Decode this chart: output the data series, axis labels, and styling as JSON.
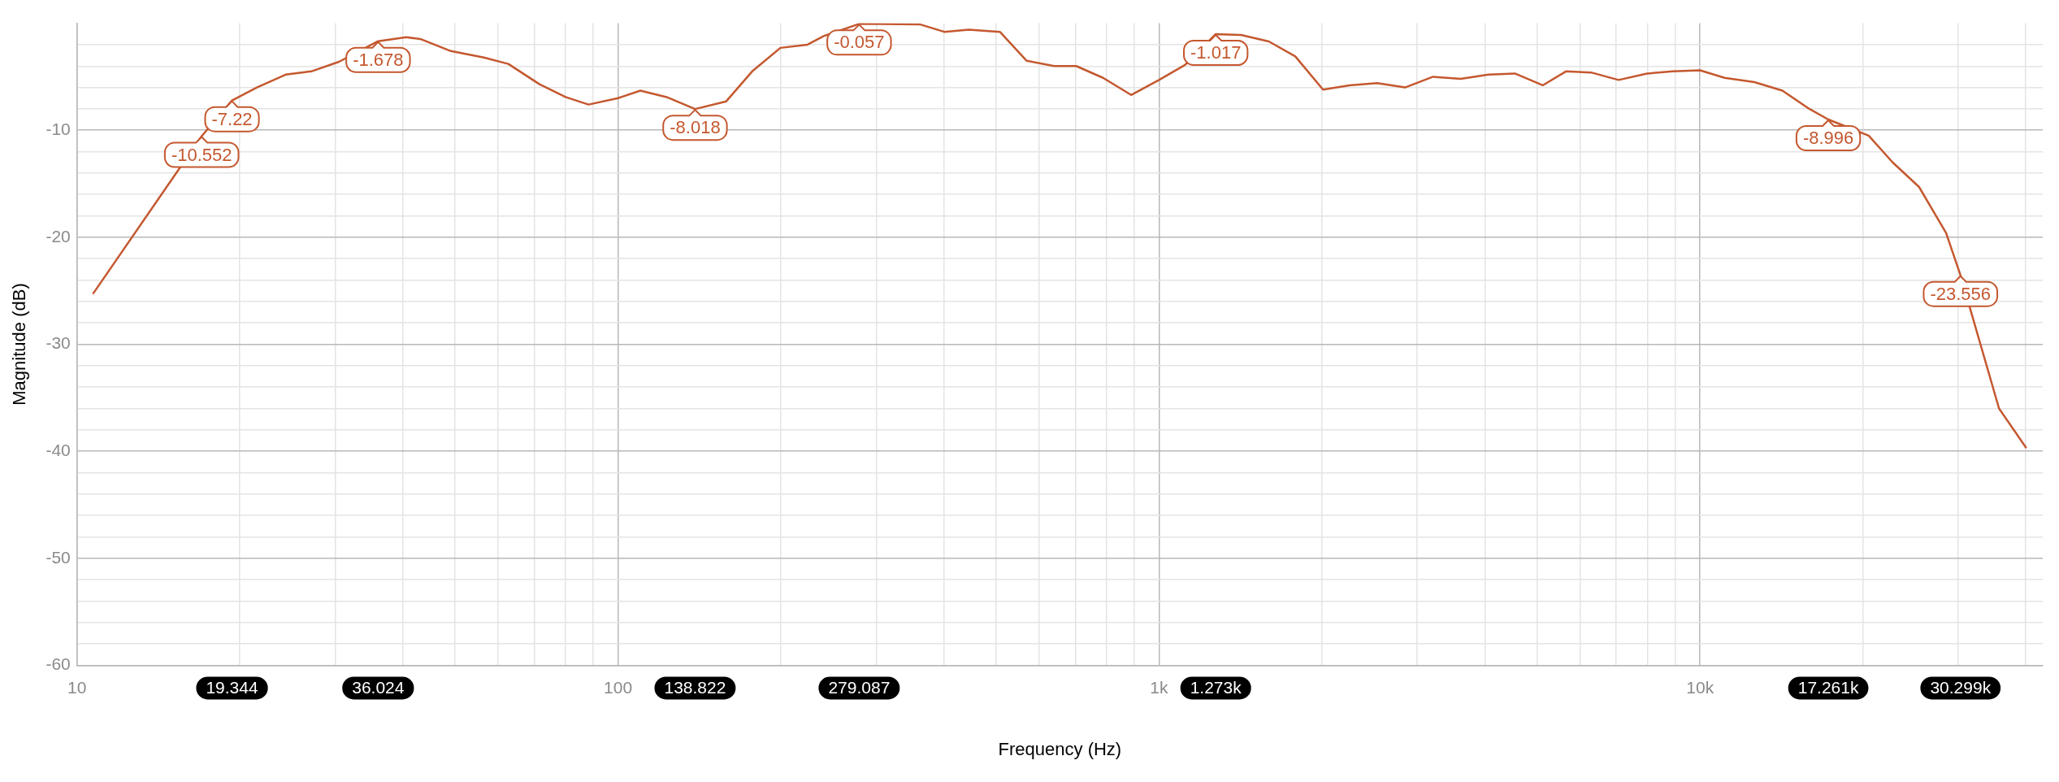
{
  "chart_data": {
    "type": "line",
    "xlabel": "Frequency (Hz)",
    "ylabel": "Magnitude (dB)",
    "log": "x",
    "grid": true,
    "legend": false,
    "marker": "none",
    "line_style": "solid",
    "xlim": [
      10,
      43000
    ],
    "ylim": [
      -60,
      0
    ],
    "xticks": [
      {
        "value": 10,
        "label": "10"
      },
      {
        "value": 19.344,
        "label": "19.344"
      },
      {
        "value": 36.024,
        "label": "36.024"
      },
      {
        "value": 138.822,
        "label": "138.822"
      },
      {
        "value": 279.087,
        "label": "279.087"
      },
      {
        "value": 1273,
        "label": "1.273k"
      },
      {
        "value": 17261,
        "label": "17.261k"
      },
      {
        "value": 30299,
        "label": "30.299k"
      },
      {
        "value": 20,
        "label": null
      },
      {
        "value": 30,
        "label": null
      },
      {
        "value": 40,
        "label": null
      },
      {
        "value": 50,
        "label": null
      },
      {
        "value": 60,
        "label": null
      },
      {
        "value": 70,
        "label": null
      },
      {
        "value": 80,
        "label": null
      },
      {
        "value": 90,
        "label": null
      },
      {
        "value": 100,
        "label": "100"
      },
      {
        "value": 200,
        "label": null
      },
      {
        "value": 300,
        "label": null
      },
      {
        "value": 400,
        "label": null
      },
      {
        "value": 500,
        "label": null
      },
      {
        "value": 600,
        "label": null
      },
      {
        "value": 700,
        "label": null
      },
      {
        "value": 800,
        "label": null
      },
      {
        "value": 900,
        "label": null
      },
      {
        "value": 1000,
        "label": "1k"
      },
      {
        "value": 2000,
        "label": null
      },
      {
        "value": 3000,
        "label": null
      },
      {
        "value": 4000,
        "label": null
      },
      {
        "value": 5000,
        "label": null
      },
      {
        "value": 6000,
        "label": null
      },
      {
        "value": 7000,
        "label": null
      },
      {
        "value": 8000,
        "label": null
      },
      {
        "value": 9000,
        "label": null
      },
      {
        "value": 10000,
        "label": "10k"
      },
      {
        "value": 20000,
        "label": null
      },
      {
        "value": 30000,
        "label": null
      },
      {
        "value": 40000,
        "label": null
      }
    ],
    "yticks": [
      -60,
      {
        "value": -58,
        "label": null
      },
      {
        "value": -56,
        "label": null
      },
      {
        "value": -54,
        "label": null
      },
      {
        "value": -52,
        "label": null
      },
      -50,
      {
        "value": -48,
        "label": null
      },
      {
        "value": -46,
        "label": null
      },
      {
        "value": -44,
        "label": null
      },
      {
        "value": -42,
        "label": null
      },
      -40,
      {
        "value": -38,
        "label": null
      },
      {
        "value": -36,
        "label": null
      },
      {
        "value": -34,
        "label": null
      },
      {
        "value": -32,
        "label": null
      },
      -30,
      {
        "value": -28,
        "label": null
      },
      {
        "value": -26,
        "label": null
      },
      {
        "value": -24,
        "label": null
      },
      {
        "value": -22,
        "label": null
      },
      -20,
      {
        "value": -18,
        "label": null
      },
      {
        "value": -16,
        "label": null
      },
      {
        "value": -14,
        "label": null
      },
      {
        "value": -12,
        "label": null
      },
      -10,
      {
        "value": -8,
        "label": null
      },
      {
        "value": -6,
        "label": null
      },
      {
        "value": -4,
        "label": null
      },
      {
        "value": -2,
        "label": null
      }
    ],
    "series": [
      {
        "color": "#c4582f",
        "x": [
          10.7,
          17.0,
          19.344,
          21.5,
          24.3,
          27.1,
          30.5,
          36.024,
          40.6,
          43.3,
          49.1,
          56.5,
          62.7,
          71.6,
          80,
          88.2,
          100,
          110,
          123,
          138.822,
          158.5,
          177,
          199.6,
          224,
          240,
          279.087,
          361,
          401,
          445,
          508,
          569,
          640,
          703,
          788,
          888,
          1000,
          1117,
          1273,
          1418,
          1596,
          1786,
          2010,
          2248,
          2530,
          2850,
          3210,
          3610,
          4066,
          4547,
          5120,
          5650,
          6290,
          7070,
          7980,
          8900,
          10000,
          11100,
          12600,
          14200,
          15800,
          17261,
          20500,
          22700,
          25400,
          28500,
          30299,
          35700,
          40100
        ],
        "values": [
          -25.3,
          -10.552,
          -7.22,
          -6.0,
          -4.8,
          -4.5,
          -3.6,
          -1.678,
          -1.3,
          -1.5,
          -2.6,
          -3.2,
          -3.8,
          -5.7,
          -6.9,
          -7.6,
          -7.0,
          -6.3,
          -6.9,
          -8.018,
          -7.3,
          -4.5,
          -2.3,
          -2.0,
          -1.2,
          -0.057,
          -0.1,
          -0.8,
          -0.6,
          -0.8,
          -3.5,
          -4.0,
          -4.0,
          -5.1,
          -6.7,
          -5.3,
          -3.9,
          -1.017,
          -1.1,
          -1.7,
          -3.1,
          -6.2,
          -5.8,
          -5.6,
          -6.0,
          -5.0,
          -5.2,
          -4.8,
          -4.7,
          -5.8,
          -4.5,
          -4.6,
          -5.3,
          -4.7,
          -4.5,
          -4.4,
          -5.1,
          -5.5,
          -6.3,
          -7.9,
          -8.996,
          -10.5,
          -13.0,
          -15.3,
          -19.6,
          -23.556,
          -36.0,
          -39.7
        ]
      }
    ],
    "annotations": [
      {
        "text": "-10.552",
        "x": 17.0,
        "y": -10.552
      },
      {
        "text": "-7.22",
        "x": 19.344,
        "y": -7.22
      },
      {
        "text": "-1.678",
        "x": 36.024,
        "y": -1.678
      },
      {
        "text": "-8.018",
        "x": 138.822,
        "y": -8.018
      },
      {
        "text": "-0.057",
        "x": 279.087,
        "y": -0.057
      },
      {
        "text": "-1.017",
        "x": 1273,
        "y": -1.017
      },
      {
        "text": "-8.996",
        "x": 17261,
        "y": -8.996
      },
      {
        "text": "-23.556",
        "x": 30299,
        "y": -23.556
      }
    ]
  }
}
